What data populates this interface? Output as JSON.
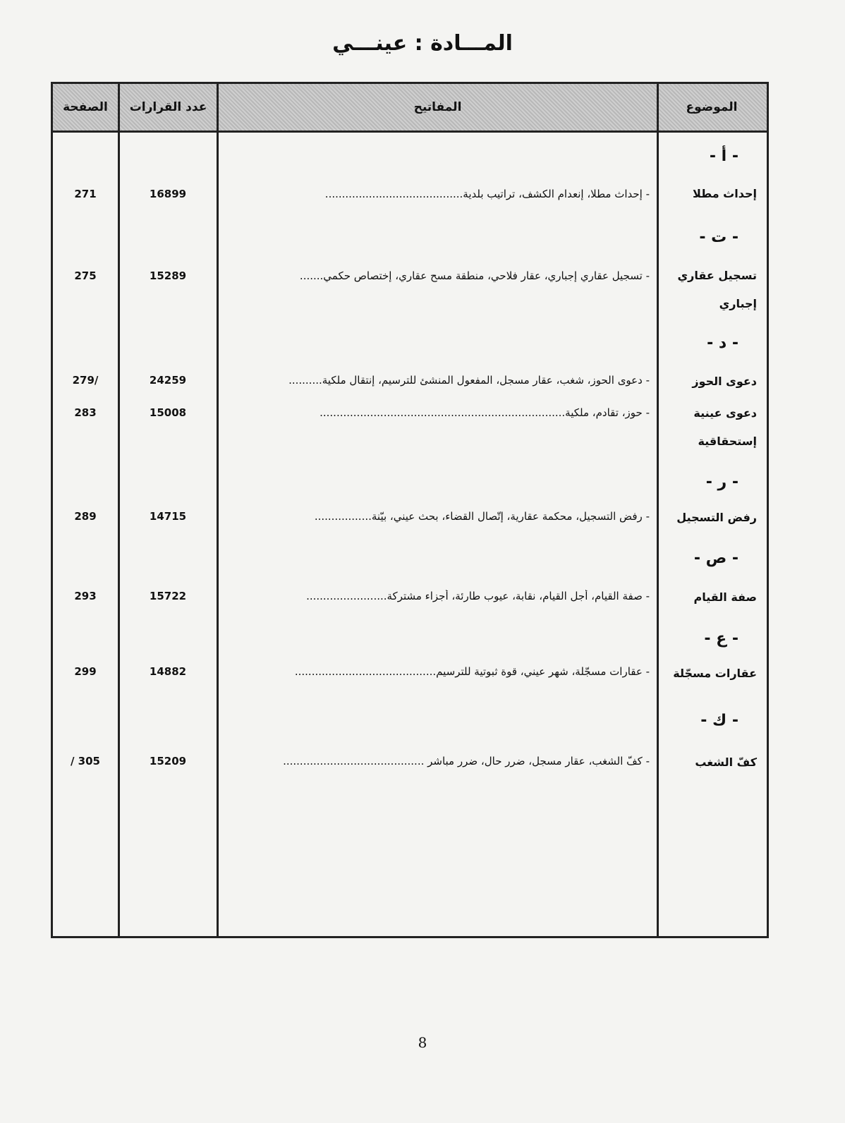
{
  "title": "المـــادة : عينـــي",
  "headers": {
    "topic": "الموضوع",
    "keys": "المفاتيح",
    "count": "عدد القرارات",
    "page": "الصفحة"
  },
  "sections": [
    {
      "letter": "- أ -",
      "items": [
        {
          "topic": "إحداث مطلا",
          "keys": "- إحداث مطلا، إنعدام الكشف، تراتيب بلدية.........................................",
          "count": "16899",
          "page": "271"
        }
      ]
    },
    {
      "letter": "- ت -",
      "items": [
        {
          "topic": "تسجيل عقاري إجباري",
          "keys": "- تسجيل عقاري إجباري، عقار فلاحي، منطقة مسح عقاري، إختصاص حكمي.......",
          "count": "15289",
          "page": "275"
        }
      ]
    },
    {
      "letter": "- د -",
      "items": [
        {
          "topic": "دعوى الحوز",
          "keys": "- دعوى الحوز، شغب، عقار مسجل، المفعول المنشئ للترسيم، إنتقال ملكية..........",
          "count": "24259",
          "page": "279/"
        },
        {
          "topic": "دعوى عينية إستحقاقية",
          "keys": "- حوز، تقادم، ملكية.........................................................................",
          "count": "15008",
          "page": "283"
        }
      ]
    },
    {
      "letter": "- ر -",
      "items": [
        {
          "topic": "رفض التسجيل",
          "keys": "- رفض التسجيل، محكمة عقارية، إتّصال القضاء، بحث عيني، بيّنة.................",
          "count": "14715",
          "page": "289"
        }
      ]
    },
    {
      "letter": "- ص -",
      "items": [
        {
          "topic": "صفة القيام",
          "keys": "- صفة القيام، أجل القيام، نقابة، عيوب طارئة، أجزاء مشتركة........................",
          "count": "15722",
          "page": "293"
        }
      ]
    },
    {
      "letter": "- ع -",
      "items": [
        {
          "topic": "عقارات مسجّلة",
          "keys": "- عقارات مسجّلة، شهر عيني، قوة ثبوتية للترسيم..........................................",
          "count": "14882",
          "page": "299"
        }
      ]
    },
    {
      "letter": "- ك -",
      "items": [
        {
          "topic": "كفّ الشغب",
          "keys": "- كفّ الشغب، عقار مسجل، ضرر حال، ضرر مباشر ..........................................",
          "count": "15209",
          "page": "/ 305"
        }
      ]
    }
  ],
  "page_number": "8"
}
